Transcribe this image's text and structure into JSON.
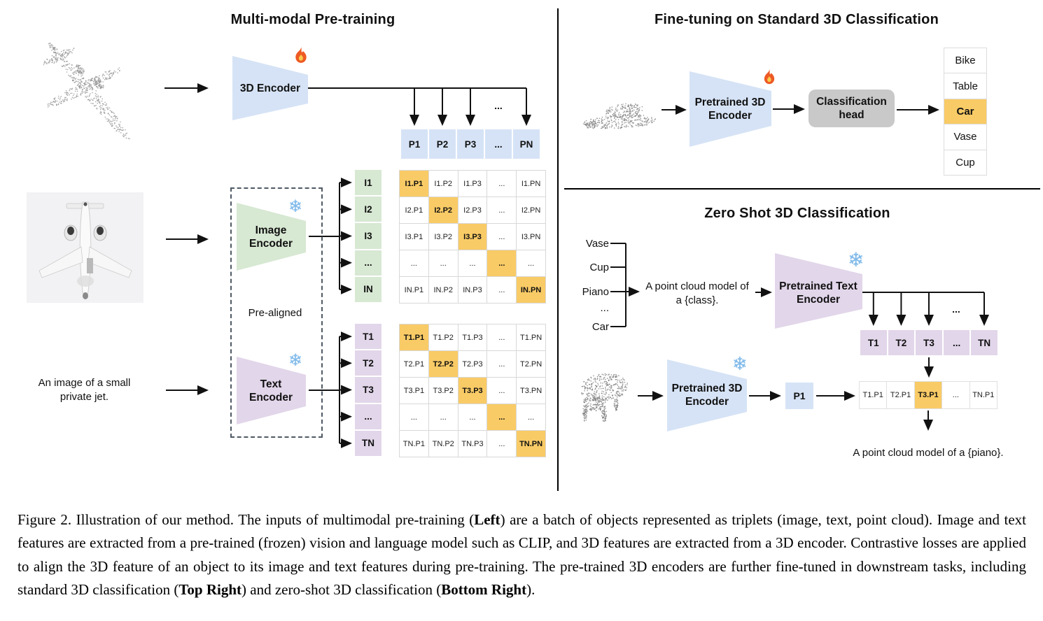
{
  "panels": {
    "pretraining": {
      "title": "Multi-modal Pre-training",
      "encoder_3d_label": "3D Encoder",
      "image_encoder": {
        "line1": "Image",
        "line2": "Encoder"
      },
      "text_encoder": {
        "line1": "Text",
        "line2": "Encoder"
      },
      "prealigned_label": "Pre-aligned",
      "input_text": {
        "line1": "An image of a small",
        "line2": "private jet."
      },
      "ellipsis": "...",
      "p_row": [
        "P1",
        "P2",
        "P3",
        "...",
        "PN"
      ],
      "i_labels": [
        "I1",
        "I2",
        "I3",
        "...",
        "IN"
      ],
      "t_labels": [
        "T1",
        "T2",
        "T3",
        "...",
        "TN"
      ],
      "ip_matrix": [
        [
          "I1.P1",
          "I1.P2",
          "I1.P3",
          "...",
          "I1.PN"
        ],
        [
          "I2.P1",
          "I2.P2",
          "I2.P3",
          "...",
          "I2.PN"
        ],
        [
          "I3.P1",
          "I3.P2",
          "I3.P3",
          "...",
          "I3.PN"
        ],
        [
          "...",
          "...",
          "...",
          "...",
          "..."
        ],
        [
          "IN.P1",
          "IN.P2",
          "IN.P3",
          "...",
          "IN.PN"
        ]
      ],
      "tp_matrix": [
        [
          "T1.P1",
          "T1.P2",
          "T1.P3",
          "...",
          "T1.PN"
        ],
        [
          "T2.P1",
          "T2.P2",
          "T2.P3",
          "...",
          "T2.PN"
        ],
        [
          "T3.P1",
          "T3.P2",
          "T3.P3",
          "...",
          "T3.PN"
        ],
        [
          "...",
          "...",
          "...",
          "...",
          "..."
        ],
        [
          "TN.P1",
          "TN.P2",
          "TN.P3",
          "...",
          "TN.PN"
        ]
      ]
    },
    "finetune": {
      "title": "Fine-tuning on Standard 3D Classification",
      "encoder": {
        "line1": "Pretrained 3D",
        "line2": "Encoder"
      },
      "head": {
        "line1": "Classification",
        "line2": "head"
      },
      "classes": [
        "Bike",
        "Table",
        "Car",
        "Vase",
        "Cup"
      ],
      "highlight_index": 2
    },
    "zeroshot": {
      "title": "Zero Shot 3D Classification",
      "class_list": [
        "Vase",
        "Cup",
        "Piano",
        "...",
        "Car"
      ],
      "prompt": {
        "line1": "A point cloud model of",
        "line2": "a {class}."
      },
      "text_encoder": {
        "line1": "Pretrained Text",
        "line2": "Encoder"
      },
      "encoder_3d": {
        "line1": "Pretrained 3D",
        "line2": "Encoder"
      },
      "t_row": [
        "T1",
        "T2",
        "T3",
        "...",
        "TN"
      ],
      "p_feature_label": "P1",
      "result_row": [
        "T1.P1",
        "T2.P1",
        "T3.P1",
        "...",
        "TN.P1"
      ],
      "result_highlight_index": 2,
      "ellipsis": "...",
      "output_text": "A point cloud model of a {piano}."
    }
  },
  "icons": {
    "fire": "flame",
    "snowflake_char": "❄"
  },
  "colors": {
    "encoder_blue": "#D6E3F6",
    "encoder_green": "#D7E8D3",
    "encoder_purple": "#E2D6EA",
    "highlight_orange": "#F9CB66",
    "head_gray": "#C9C9C9"
  },
  "caption": {
    "segments": [
      {
        "text": "Figure 2. Illustration of our method. The inputs of multimodal pre-training (",
        "bold": false
      },
      {
        "text": "Left",
        "bold": true
      },
      {
        "text": ") are a batch of objects represented as triplets (image, text, point cloud). Image and text features are extracted from a pre-trained (frozen) vision and language model such as CLIP, and 3D features are extracted from a 3D encoder. Contrastive losses are applied to align the 3D feature of an object to its image and text features during pre-training. The pre-trained 3D encoders are further fine-tuned in downstream tasks, including standard 3D classification (",
        "bold": false
      },
      {
        "text": "Top Right",
        "bold": true
      },
      {
        "text": ") and zero-shot 3D classification (",
        "bold": false
      },
      {
        "text": "Bottom Right",
        "bold": true
      },
      {
        "text": ").",
        "bold": false
      }
    ]
  }
}
